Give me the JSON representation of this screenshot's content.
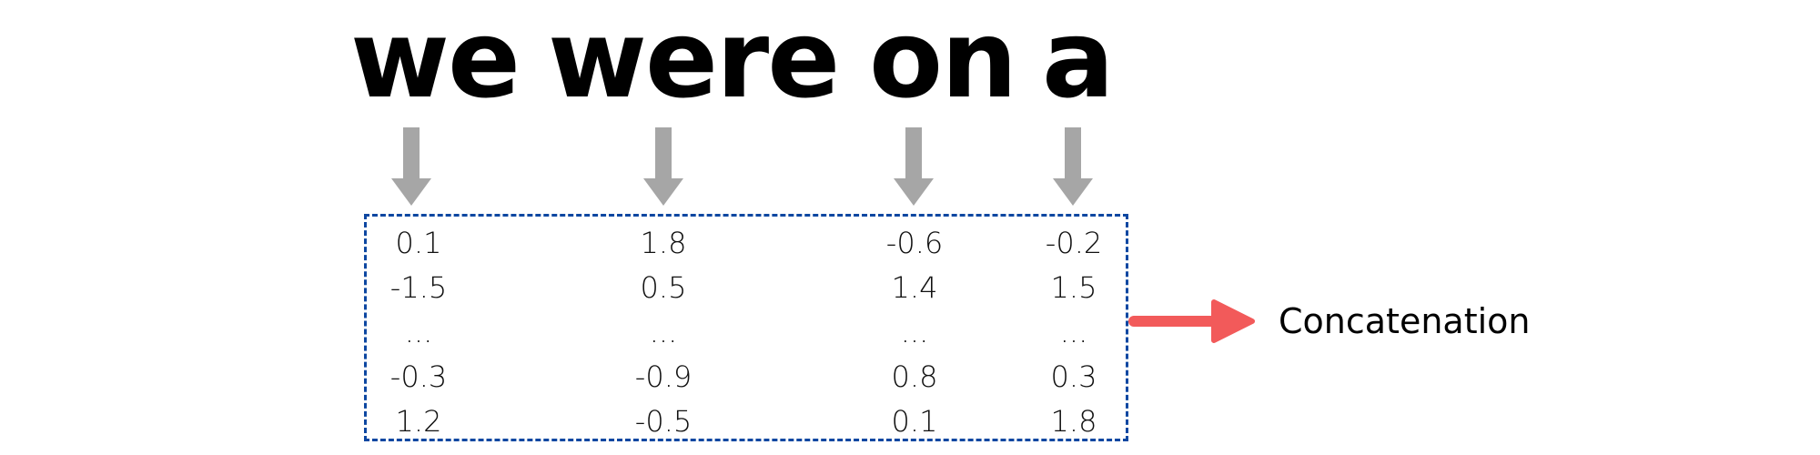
{
  "words": [
    "we",
    "were",
    "on",
    "a"
  ],
  "vectors": [
    [
      "0.1",
      "-1.5",
      "...",
      "-0.3",
      "1.2"
    ],
    [
      "1.8",
      "0.5",
      "...",
      "-0.9",
      "-0.5"
    ],
    [
      "-0.6",
      "1.4",
      "...",
      "0.8",
      "0.1"
    ],
    [
      "-0.2",
      "1.5",
      "...",
      "0.3",
      "1.8"
    ]
  ],
  "concat_label": "Concatenation",
  "colors": {
    "word_text": "#000000",
    "down_arrow": "#a6a6a6",
    "box_border": "#0d47a1",
    "concat_arrow": "#f25a5a"
  }
}
